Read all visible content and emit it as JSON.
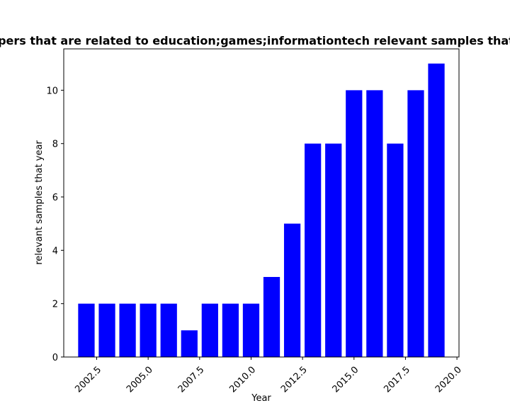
{
  "chart_data": {
    "type": "bar",
    "title": "Number of papers that are related to education;games;informationtech relevant samples that year in private",
    "xlabel": "Year",
    "ylabel": "relevant samples that year",
    "x": [
      2002,
      2003,
      2004,
      2005,
      2006,
      2007,
      2008,
      2009,
      2010,
      2011,
      2012,
      2013,
      2014,
      2015,
      2016,
      2017,
      2018,
      2019
    ],
    "values": [
      2,
      2,
      2,
      2,
      2,
      1,
      2,
      2,
      2,
      3,
      5,
      8,
      8,
      10,
      10,
      8,
      10,
      11
    ],
    "xlim": [
      2000.9,
      2020.1
    ],
    "ylim": [
      0,
      11.55
    ],
    "xticks": [
      "2002.5",
      "2005.0",
      "2007.5",
      "2010.0",
      "2012.5",
      "2015.0",
      "2017.5",
      "2020.0"
    ],
    "yticks": [
      "0",
      "2",
      "4",
      "6",
      "8",
      "10"
    ],
    "bar_color": "#0000ff",
    "grid": false,
    "legend": "none"
  }
}
